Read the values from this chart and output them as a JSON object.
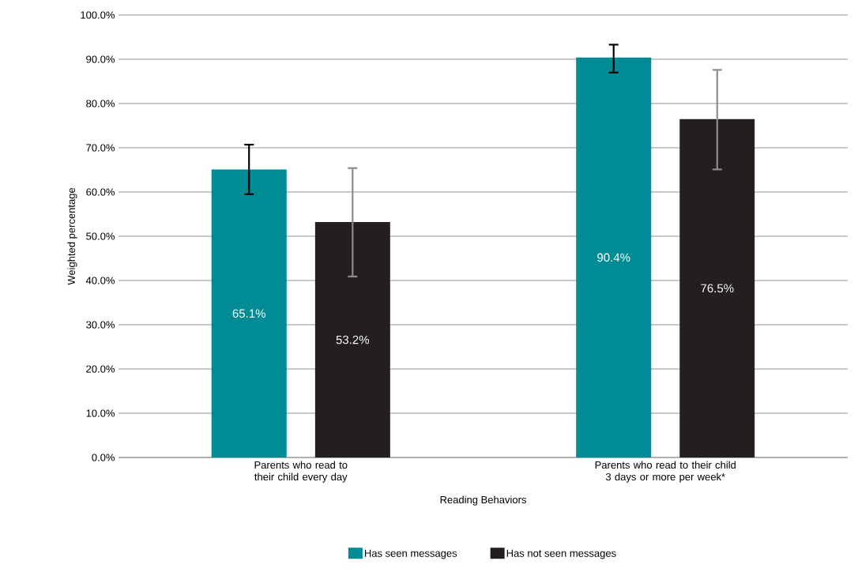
{
  "chart_data": {
    "type": "bar",
    "xlabel": "Reading Behaviors",
    "ylabel": "Weighted percentage",
    "categories": [
      "Parents who read to their child every day",
      "Parents who read to their child 3 days or more per week*"
    ],
    "series": [
      {
        "name": "Has seen messages",
        "color": "#008b95",
        "values": [
          65.1,
          90.4
        ],
        "errors": [
          [
            59.5,
            70.7
          ],
          [
            87.0,
            93.3
          ]
        ],
        "value_labels": [
          "65.1%",
          "90.4%"
        ]
      },
      {
        "name": "Has not seen messages",
        "color": "#231f20",
        "values": [
          53.2,
          76.5
        ],
        "errors": [
          [
            40.9,
            65.4
          ],
          [
            65.1,
            87.6
          ]
        ],
        "value_labels": [
          "53.2%",
          "76.5%"
        ]
      }
    ],
    "ylim": [
      0,
      100
    ],
    "yticks": [
      {
        "value": 0,
        "label": "0.0%"
      },
      {
        "value": 10,
        "label": "10.0%"
      },
      {
        "value": 20,
        "label": "20.0%"
      },
      {
        "value": 30,
        "label": "30.0%"
      },
      {
        "value": 40,
        "label": "40.0%"
      },
      {
        "value": 50,
        "label": "50.0%"
      },
      {
        "value": 60,
        "label": "60.0%"
      },
      {
        "value": 70,
        "label": "70.0%"
      },
      {
        "value": 80,
        "label": "80.0%"
      },
      {
        "value": 90,
        "label": "90.0%"
      },
      {
        "value": 100,
        "label": "100.0%"
      }
    ],
    "grid": "y",
    "legend": "bottom"
  }
}
